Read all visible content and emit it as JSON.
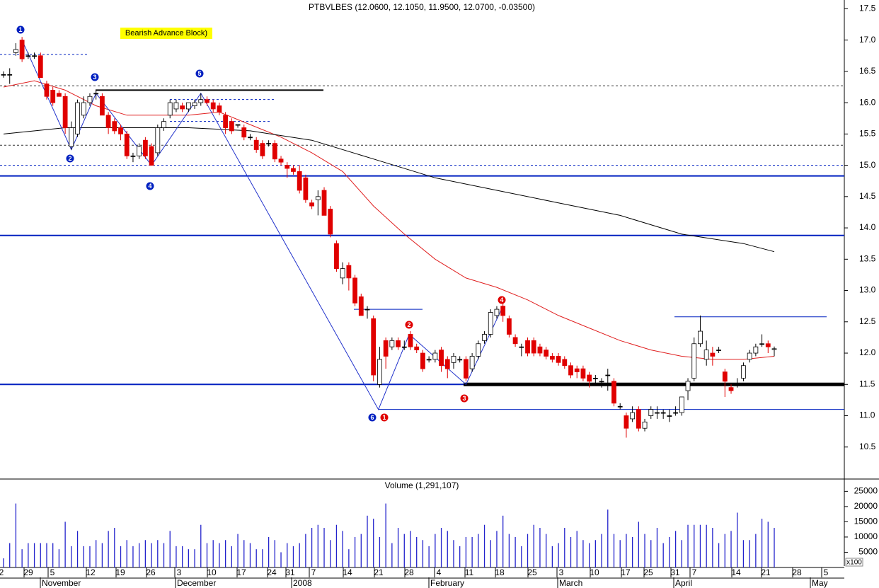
{
  "chart_data": {
    "type": "candlestick",
    "title": "PTBVLBES (12.0600, 12.1050, 11.9500, 12.0700, -0.03500)",
    "pattern_label": "Bearish Advance Block)",
    "ylim": [
      10,
      17.64
    ],
    "yticks": [
      {
        "value": 10.5,
        "label": "10.5"
      },
      {
        "value": 11,
        "label": "11.0"
      },
      {
        "value": 11.5,
        "label": "11.5"
      },
      {
        "value": 12,
        "label": "12.0"
      },
      {
        "value": 12.5,
        "label": "12.5"
      },
      {
        "value": 13,
        "label": "13.0"
      },
      {
        "value": 13.5,
        "label": "13.5"
      },
      {
        "value": 14,
        "label": "14.0"
      },
      {
        "value": 14.5,
        "label": "14.5"
      },
      {
        "value": 15,
        "label": "15.0"
      },
      {
        "value": 15.5,
        "label": "15.5"
      },
      {
        "value": 16,
        "label": "16.0"
      },
      {
        "value": 16.5,
        "label": "16.5"
      },
      {
        "value": 17,
        "label": "17.0"
      },
      {
        "value": 17.5,
        "label": "17.5"
      }
    ],
    "up_color": "#ffffff",
    "down_color": "#e00000",
    "ohlc": [
      [
        16.45,
        16.5,
        16.4,
        16.45
      ],
      [
        16.45,
        16.55,
        16.3,
        16.45
      ],
      [
        16.8,
        16.95,
        16.75,
        16.85
      ],
      [
        17.0,
        17.05,
        16.65,
        16.7
      ],
      [
        16.75,
        16.8,
        16.7,
        16.75
      ],
      [
        16.75,
        16.8,
        16.7,
        16.75
      ],
      [
        16.75,
        16.8,
        16.4,
        16.4
      ],
      [
        16.3,
        16.35,
        16.05,
        16.1
      ],
      [
        16.2,
        16.25,
        15.95,
        16.0
      ],
      [
        16.15,
        16.2,
        16.1,
        16.1
      ],
      [
        16.1,
        16.15,
        15.5,
        15.6
      ],
      [
        15.3,
        15.7,
        15.25,
        15.6
      ],
      [
        15.5,
        16.05,
        15.45,
        16.0
      ],
      [
        15.8,
        16.1,
        15.75,
        16.0
      ],
      [
        16.0,
        16.15,
        15.95,
        16.1
      ],
      [
        16.15,
        16.2,
        16.05,
        16.15
      ],
      [
        16.1,
        16.15,
        15.8,
        15.8
      ],
      [
        15.8,
        15.85,
        15.5,
        15.6
      ],
      [
        15.7,
        15.75,
        15.5,
        15.55
      ],
      [
        15.6,
        15.65,
        15.4,
        15.5
      ],
      [
        15.5,
        15.55,
        15.1,
        15.15
      ],
      [
        15.15,
        15.2,
        15.05,
        15.15
      ],
      [
        15.15,
        15.35,
        15.1,
        15.3
      ],
      [
        15.4,
        15.45,
        15.1,
        15.15
      ],
      [
        15.3,
        15.35,
        15.0,
        15.0
      ],
      [
        15.2,
        15.65,
        15.15,
        15.6
      ],
      [
        15.6,
        15.75,
        15.55,
        15.7
      ],
      [
        15.8,
        16.05,
        15.75,
        16.0
      ],
      [
        15.9,
        16.05,
        15.85,
        16.0
      ],
      [
        15.95,
        16.0,
        15.85,
        15.9
      ],
      [
        15.9,
        16.0,
        15.85,
        16.0
      ],
      [
        15.95,
        16.05,
        15.9,
        16.0
      ],
      [
        16.0,
        16.15,
        15.95,
        16.05
      ],
      [
        16.05,
        16.1,
        15.95,
        16.0
      ],
      [
        16.0,
        16.05,
        15.85,
        15.9
      ],
      [
        15.95,
        16.0,
        15.8,
        15.85
      ],
      [
        15.8,
        15.85,
        15.5,
        15.6
      ],
      [
        15.7,
        15.75,
        15.5,
        15.55
      ],
      [
        15.65,
        15.65,
        15.6,
        15.65
      ],
      [
        15.6,
        15.65,
        15.4,
        15.45
      ],
      [
        15.45,
        15.5,
        15.4,
        15.45
      ],
      [
        15.4,
        15.45,
        15.2,
        15.25
      ],
      [
        15.35,
        15.4,
        15.1,
        15.15
      ],
      [
        15.35,
        15.4,
        15.3,
        15.35
      ],
      [
        15.35,
        15.4,
        15.05,
        15.1
      ],
      [
        15.1,
        15.15,
        15.0,
        15.05
      ],
      [
        15.0,
        15.05,
        14.8,
        14.95
      ],
      [
        14.95,
        15.0,
        14.85,
        14.9
      ],
      [
        14.9,
        15.0,
        14.55,
        14.6
      ],
      [
        14.8,
        14.85,
        14.4,
        14.45
      ],
      [
        14.4,
        14.45,
        14.3,
        14.35
      ],
      [
        14.45,
        14.6,
        14.2,
        14.5
      ],
      [
        14.6,
        14.65,
        14.2,
        14.2
      ],
      [
        14.3,
        14.35,
        13.85,
        13.9
      ],
      [
        13.75,
        13.8,
        13.3,
        13.35
      ],
      [
        13.2,
        13.45,
        13.1,
        13.35
      ],
      [
        13.4,
        13.45,
        13.0,
        13.2
      ],
      [
        13.2,
        13.25,
        12.75,
        12.8
      ],
      [
        12.9,
        12.95,
        12.6,
        12.6
      ],
      [
        12.7,
        12.75,
        12.55,
        12.7
      ],
      [
        12.55,
        12.6,
        11.55,
        11.65
      ],
      [
        11.5,
        12.1,
        11.45,
        11.9
      ],
      [
        12.2,
        12.25,
        11.75,
        11.95
      ],
      [
        12.1,
        12.25,
        12.05,
        12.2
      ],
      [
        12.2,
        12.25,
        12.05,
        12.1
      ],
      [
        12.1,
        12.2,
        12.05,
        12.1
      ],
      [
        12.3,
        12.35,
        12.05,
        12.1
      ],
      [
        12.1,
        12.15,
        12.0,
        12.05
      ],
      [
        12.0,
        12.05,
        11.7,
        11.75
      ],
      [
        11.9,
        11.95,
        11.85,
        11.9
      ],
      [
        11.9,
        12.05,
        11.85,
        12.0
      ],
      [
        12.05,
        12.1,
        11.7,
        11.8
      ],
      [
        11.9,
        11.95,
        11.6,
        11.75
      ],
      [
        11.85,
        12.0,
        11.75,
        11.95
      ],
      [
        11.9,
        11.95,
        11.85,
        11.9
      ],
      [
        11.9,
        11.95,
        11.55,
        11.6
      ],
      [
        11.75,
        12.0,
        11.7,
        11.95
      ],
      [
        11.95,
        12.2,
        11.9,
        12.15
      ],
      [
        12.2,
        12.35,
        12.15,
        12.3
      ],
      [
        12.3,
        12.7,
        12.25,
        12.65
      ],
      [
        12.6,
        12.75,
        12.55,
        12.7
      ],
      [
        12.75,
        12.8,
        12.5,
        12.6
      ],
      [
        12.55,
        12.6,
        12.25,
        12.3
      ],
      [
        12.25,
        12.3,
        12.1,
        12.15
      ],
      [
        12.1,
        12.15,
        11.95,
        12.1
      ],
      [
        12.2,
        12.25,
        11.95,
        12.0
      ],
      [
        12.2,
        12.25,
        11.95,
        12.0
      ],
      [
        12.1,
        12.15,
        11.95,
        12.0
      ],
      [
        12.05,
        12.1,
        11.9,
        11.95
      ],
      [
        11.95,
        12.0,
        11.85,
        11.9
      ],
      [
        11.95,
        12.0,
        11.8,
        11.85
      ],
      [
        11.9,
        11.95,
        11.75,
        11.8
      ],
      [
        11.8,
        11.85,
        11.6,
        11.65
      ],
      [
        11.75,
        11.8,
        11.6,
        11.7
      ],
      [
        11.75,
        11.8,
        11.55,
        11.6
      ],
      [
        11.65,
        11.7,
        11.45,
        11.55
      ],
      [
        11.6,
        11.65,
        11.5,
        11.6
      ],
      [
        11.55,
        11.6,
        11.45,
        11.55
      ],
      [
        11.65,
        11.75,
        11.4,
        11.65
      ],
      [
        11.55,
        11.6,
        11.15,
        11.2
      ],
      [
        11.15,
        11.2,
        11.1,
        11.15
      ],
      [
        11.0,
        11.05,
        10.65,
        10.8
      ],
      [
        10.95,
        11.15,
        10.9,
        11.05
      ],
      [
        11.1,
        11.15,
        10.75,
        10.8
      ],
      [
        10.8,
        10.95,
        10.75,
        10.9
      ],
      [
        11.0,
        11.15,
        10.95,
        11.1
      ],
      [
        11.05,
        11.15,
        10.95,
        11.05
      ],
      [
        11.05,
        11.1,
        10.95,
        11.05
      ],
      [
        11.0,
        11.1,
        10.9,
        11.0
      ],
      [
        11.05,
        11.15,
        11.0,
        11.05
      ],
      [
        11.05,
        11.3,
        11.0,
        11.3
      ],
      [
        11.4,
        11.6,
        11.25,
        11.55
      ],
      [
        11.6,
        12.25,
        11.55,
        12.15
      ],
      [
        12.15,
        12.6,
        12.1,
        12.35
      ],
      [
        11.9,
        12.2,
        11.8,
        12.05
      ],
      [
        12.0,
        12.1,
        11.8,
        11.95
      ],
      [
        12.05,
        12.1,
        12.0,
        12.05
      ],
      [
        11.7,
        11.75,
        11.3,
        11.55
      ],
      [
        11.45,
        11.5,
        11.35,
        11.4
      ],
      [
        11.5,
        11.6,
        11.45,
        11.5
      ],
      [
        11.6,
        11.85,
        11.55,
        11.8
      ],
      [
        11.9,
        12.05,
        11.85,
        12.0
      ],
      [
        12.0,
        12.15,
        11.95,
        12.1
      ],
      [
        12.15,
        12.3,
        12.1,
        12.15
      ],
      [
        12.15,
        12.2,
        12.0,
        12.1
      ],
      [
        12.06,
        12.105,
        11.95,
        12.07
      ]
    ],
    "moving_averages": [
      {
        "color": "#e02020",
        "x": [
          0,
          5,
          10,
          15,
          20,
          25,
          30,
          35,
          40,
          45,
          50,
          55,
          60,
          65,
          70,
          75,
          80,
          85,
          90,
          95,
          100,
          105,
          110,
          115,
          120,
          125
        ],
        "values": [
          16.25,
          16.35,
          16.2,
          15.95,
          15.8,
          15.8,
          15.8,
          15.85,
          15.65,
          15.45,
          15.2,
          14.9,
          14.35,
          13.9,
          13.5,
          13.2,
          13.05,
          12.85,
          12.6,
          12.4,
          12.2,
          12.05,
          11.95,
          11.9,
          11.9,
          11.95
        ]
      },
      {
        "color": "#000000",
        "x": [
          0,
          10,
          20,
          30,
          40,
          50,
          60,
          70,
          80,
          90,
          100,
          110,
          120,
          125
        ],
        "values": [
          15.5,
          15.6,
          15.6,
          15.6,
          15.55,
          15.4,
          15.1,
          14.8,
          14.6,
          14.4,
          14.2,
          13.9,
          13.75,
          13.62
        ]
      }
    ],
    "zigzag": {
      "color": "#2233cc",
      "x": [
        3,
        11,
        15,
        24,
        32,
        60.8,
        65.8,
        75,
        81
      ],
      "values": [
        17.0,
        15.25,
        16.15,
        15.0,
        16.15,
        11.1,
        12.3,
        11.5,
        12.75
      ]
    },
    "levels": [
      16.77,
      16.2,
      16.05,
      15.7,
      16.27,
      15.32,
      15.0,
      14.83,
      13.88,
      11.5,
      11.5,
      11.1,
      12.7,
      12.58
    ],
    "markers": [
      {
        "label": "1",
        "color": "#0020c0"
      },
      {
        "label": "2",
        "color": "#0020c0"
      },
      {
        "label": "3",
        "color": "#0020c0"
      },
      {
        "label": "4",
        "color": "#0020c0"
      },
      {
        "label": "5",
        "color": "#0020c0"
      },
      {
        "label": "6",
        "color": "#0020c0"
      },
      {
        "label": "1",
        "color": "#e00000"
      },
      {
        "label": "2",
        "color": "#e00000"
      },
      {
        "label": "3",
        "color": "#e00000"
      },
      {
        "label": "4",
        "color": "#e00000"
      }
    ],
    "volume": {
      "title": "Volume (1,291,107)",
      "color": "#2222cc",
      "ylim": [
        0,
        28800
      ],
      "yticks": [
        5000,
        10000,
        15000,
        20000,
        25000
      ],
      "unit_label": "x100",
      "values": [
        3000,
        8000,
        21000,
        6000,
        8000,
        8000,
        8000,
        8000,
        8000,
        6000,
        15000,
        7000,
        12000,
        7000,
        7000,
        9000,
        8000,
        12000,
        13000,
        7000,
        9000,
        7000,
        8000,
        9000,
        8000,
        9000,
        8000,
        12000,
        7000,
        7000,
        6000,
        6000,
        14000,
        8000,
        9000,
        8000,
        9000,
        7000,
        11000,
        9000,
        8000,
        6000,
        6000,
        10000,
        9000,
        5000,
        8000,
        7000,
        8000,
        11000,
        13000,
        14000,
        13000,
        9000,
        14000,
        12000,
        6000,
        10000,
        11000,
        17000,
        16000,
        10000,
        21000,
        8000,
        13000,
        11000,
        12000,
        10000,
        9000,
        7000,
        11000,
        13000,
        12000,
        9000,
        7000,
        10000,
        10000,
        11000,
        14000,
        9000,
        12000,
        17000,
        11000,
        10000,
        7000,
        11000,
        14000,
        13000,
        11000,
        7000,
        8000,
        13000,
        10000,
        12000,
        9000,
        8000,
        9000,
        11000,
        19000,
        11000,
        9000,
        11000,
        10000,
        15000,
        11000,
        9000,
        13000,
        8000,
        10000,
        12000,
        9000,
        14000,
        14000,
        14000,
        14000,
        13000,
        8000,
        11000,
        12000,
        18000,
        9000,
        9000,
        11000,
        16000,
        15000,
        13000
      ]
    },
    "day_labels": [
      "2",
      "29",
      "5",
      "12",
      "19",
      "26",
      "3",
      "10",
      "17",
      "24",
      "31",
      "7",
      "14",
      "21",
      "28",
      "4",
      "11",
      "18",
      "25",
      "3",
      "10",
      "17",
      "25",
      "31",
      "7",
      "14",
      "21",
      "28",
      "5"
    ],
    "month_labels": [
      "November",
      "December",
      "2008",
      "February",
      "March",
      "April",
      "May"
    ]
  }
}
